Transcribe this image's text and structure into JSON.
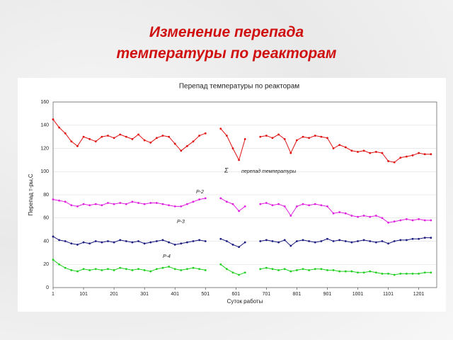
{
  "slide": {
    "heading": [
      "Изменение перепада",
      "температуры по реакторам"
    ]
  },
  "chart_data": {
    "type": "line",
    "title": "Перепад температуры по реакторам",
    "x_label": "Суток работы",
    "y_label": "Перепад т-ры,С",
    "x": [
      1,
      21,
      41,
      61,
      81,
      101,
      121,
      141,
      161,
      181,
      201,
      221,
      241,
      261,
      281,
      301,
      321,
      341,
      361,
      381,
      401,
      421,
      441,
      461,
      481,
      501,
      521,
      551,
      571,
      591,
      611,
      631,
      651,
      681,
      701,
      721,
      741,
      761,
      781,
      801,
      821,
      841,
      861,
      881,
      901,
      921,
      941,
      961,
      981,
      1001,
      1021,
      1041,
      1061,
      1081,
      1101,
      1121,
      1141,
      1161,
      1181,
      1201,
      1221,
      1241
    ],
    "series": [
      {
        "color": "#e01010",
        "values": [
          145,
          138,
          133,
          126,
          122,
          130,
          128,
          126,
          130,
          131,
          129,
          132,
          130,
          128,
          132,
          127,
          125,
          129,
          131,
          130,
          124,
          118,
          122,
          126,
          131,
          133,
          null,
          137,
          131,
          120,
          110,
          128,
          null,
          130,
          131,
          129,
          132,
          128,
          116,
          127,
          130,
          129,
          131,
          130,
          129,
          120,
          123,
          121,
          118,
          117,
          118,
          116,
          117,
          116,
          109,
          108,
          112,
          113,
          114,
          116,
          115,
          115
        ]
      },
      {
        "color": "#e020e0",
        "values": [
          76,
          75,
          74,
          71,
          70,
          72,
          71,
          72,
          71,
          73,
          72,
          73,
          72,
          74,
          73,
          72,
          73,
          73,
          72,
          71,
          70,
          70,
          72,
          74,
          76,
          77,
          null,
          77,
          74,
          72,
          66,
          70,
          null,
          72,
          73,
          71,
          72,
          70,
          62,
          70,
          72,
          71,
          72,
          71,
          70,
          64,
          65,
          64,
          62,
          61,
          62,
          61,
          62,
          60,
          56,
          57,
          58,
          59,
          58,
          59,
          58,
          58
        ]
      },
      {
        "color": "#1a1a80",
        "values": [
          44,
          41,
          40,
          38,
          37,
          39,
          38,
          40,
          39,
          40,
          39,
          41,
          40,
          39,
          40,
          38,
          39,
          40,
          41,
          39,
          37,
          38,
          39,
          40,
          41,
          40,
          null,
          42,
          40,
          37,
          35,
          39,
          null,
          40,
          41,
          40,
          39,
          41,
          36,
          40,
          41,
          40,
          39,
          40,
          42,
          40,
          41,
          40,
          39,
          40,
          41,
          40,
          39,
          40,
          38,
          40,
          41,
          41,
          42,
          42,
          43,
          43
        ]
      },
      {
        "color": "#20d020",
        "values": [
          24,
          20,
          17,
          15,
          14,
          16,
          15,
          16,
          15,
          16,
          15,
          17,
          16,
          15,
          16,
          15,
          14,
          16,
          17,
          18,
          16,
          15,
          16,
          17,
          16,
          15,
          null,
          20,
          16,
          13,
          11,
          13,
          null,
          16,
          17,
          16,
          15,
          16,
          14,
          15,
          16,
          15,
          16,
          16,
          15,
          15,
          14,
          14,
          14,
          13,
          13,
          14,
          13,
          12,
          12,
          11,
          12,
          12,
          12,
          12,
          13,
          13
        ]
      }
    ],
    "annotations": [
      "Σ",
      "перепад температуры",
      "Р-2",
      "Р-3",
      "Р-4"
    ],
    "xlim": [
      1,
      1260
    ],
    "ylim": [
      0,
      160
    ],
    "xticks": [
      1,
      101,
      201,
      301,
      401,
      501,
      601,
      701,
      801,
      901,
      1001,
      1101,
      1201
    ],
    "yticks": [
      0,
      20,
      40,
      60,
      80,
      100,
      120,
      140,
      160
    ],
    "grid": true
  }
}
